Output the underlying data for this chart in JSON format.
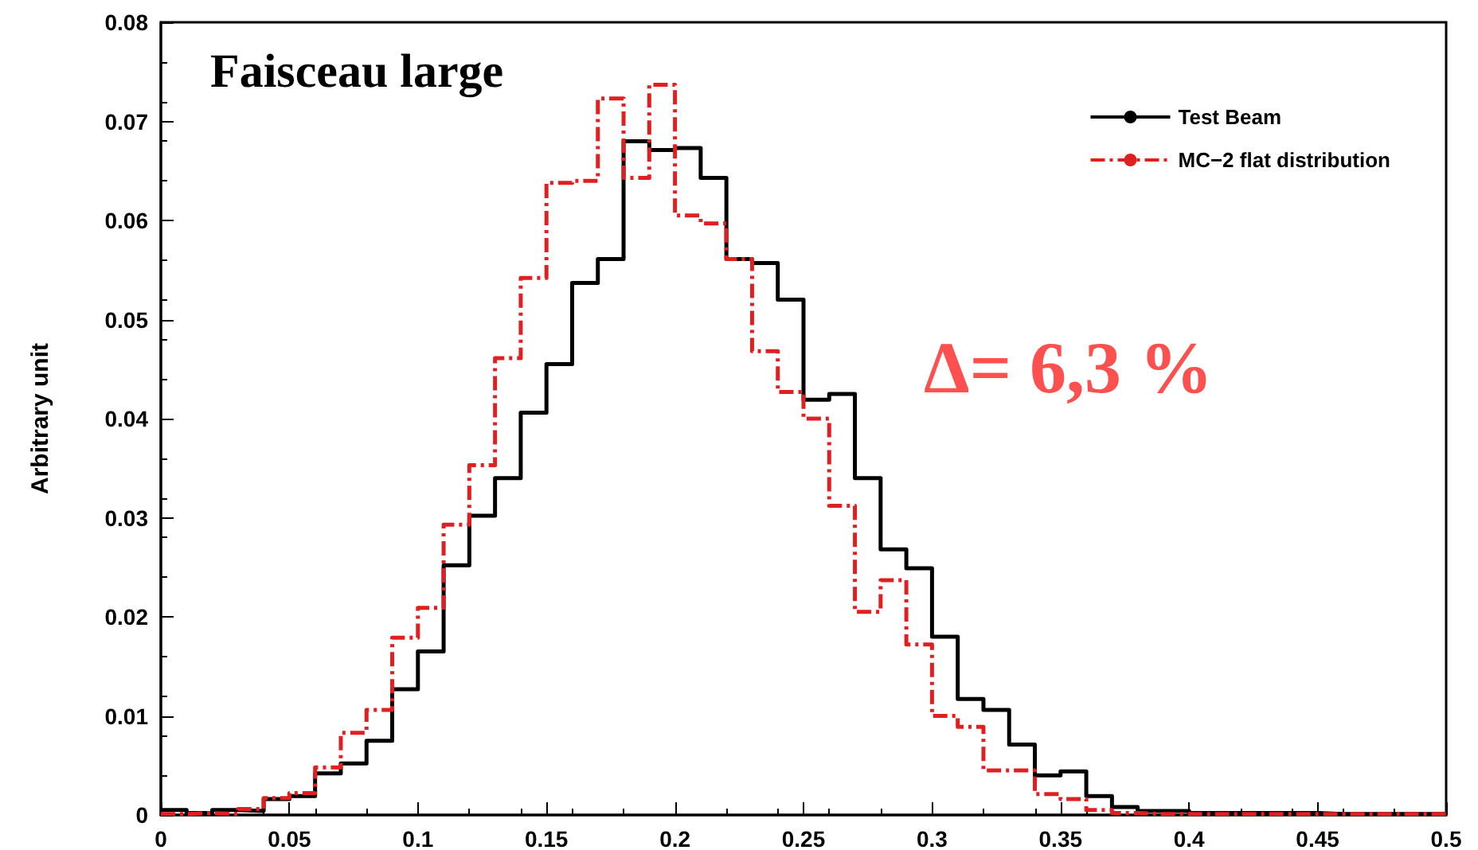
{
  "chart_data": {
    "type": "histogram",
    "ylabel": "Arbitrary unit",
    "annotations": [
      "Faisceau large",
      "Δ= 6,3 %"
    ],
    "bins": [
      0,
      0.01,
      0.02,
      0.03,
      0.04,
      0.05,
      0.06,
      0.07,
      0.08,
      0.09,
      0.1,
      0.11,
      0.12,
      0.13,
      0.14,
      0.15,
      0.16,
      0.17,
      0.18,
      0.19,
      0.2,
      0.21,
      0.22,
      0.23,
      0.24,
      0.25,
      0.26,
      0.27,
      0.28,
      0.29,
      0.3,
      0.31,
      0.32,
      0.33,
      0.34,
      0.35,
      0.36,
      0.37,
      0.38,
      0.39,
      0.4,
      0.41,
      0.42,
      0.43,
      0.44,
      0.45,
      0.46,
      0.47,
      0.48,
      0.49,
      0.5
    ],
    "series": [
      {
        "name": "Test Beam",
        "color": "#000000",
        "line_style": "solid",
        "values": [
          0.0005,
          0.0002,
          0.0005,
          0.0004,
          0.0016,
          0.0019,
          0.0042,
          0.0052,
          0.0075,
          0.0127,
          0.0165,
          0.0252,
          0.0302,
          0.034,
          0.0406,
          0.0455,
          0.0537,
          0.0561,
          0.068,
          0.0671,
          0.0673,
          0.0643,
          0.0561,
          0.0557,
          0.052,
          0.0419,
          0.0425,
          0.034,
          0.0268,
          0.0249,
          0.018,
          0.0117,
          0.0106,
          0.0071,
          0.004,
          0.0044,
          0.0019,
          0.0008,
          0.0004,
          0.0004,
          0.0002,
          0.0002,
          0.0002,
          0.0002,
          0.0002,
          0.0001,
          0.0001,
          0.0001,
          0.0001,
          0.0001
        ]
      },
      {
        "name": "MC−2 flat distribution",
        "color": "#e02020",
        "line_style": "dashed",
        "values": [
          0.0001,
          0.0002,
          0.0001,
          0.0006,
          0.0017,
          0.0022,
          0.0048,
          0.0083,
          0.0106,
          0.0179,
          0.0209,
          0.0293,
          0.0353,
          0.0461,
          0.0542,
          0.0638,
          0.064,
          0.0723,
          0.0643,
          0.0737,
          0.0605,
          0.0597,
          0.0561,
          0.0468,
          0.0427,
          0.04,
          0.0312,
          0.0205,
          0.0237,
          0.0172,
          0.01,
          0.0089,
          0.0045,
          0.0045,
          0.0021,
          0.0016,
          0.0005,
          0.0002,
          0.0001,
          0.0001,
          0.0001,
          0.0001,
          0.0001,
          0.0001,
          0.0001,
          0.0001,
          0.0001,
          0.0001,
          0.0001,
          0.0001
        ]
      }
    ],
    "xlim": [
      0,
      0.5
    ],
    "xticks": [
      0,
      0.05,
      0.1,
      0.15,
      0.2,
      0.25,
      0.3,
      0.35,
      0.4,
      0.45,
      0.5
    ],
    "ylim": [
      0,
      0.08
    ],
    "yticks": [
      0,
      0.01,
      0.02,
      0.03,
      0.04,
      0.05,
      0.06,
      0.07,
      0.08
    ],
    "grid": false,
    "legend": "top right"
  }
}
